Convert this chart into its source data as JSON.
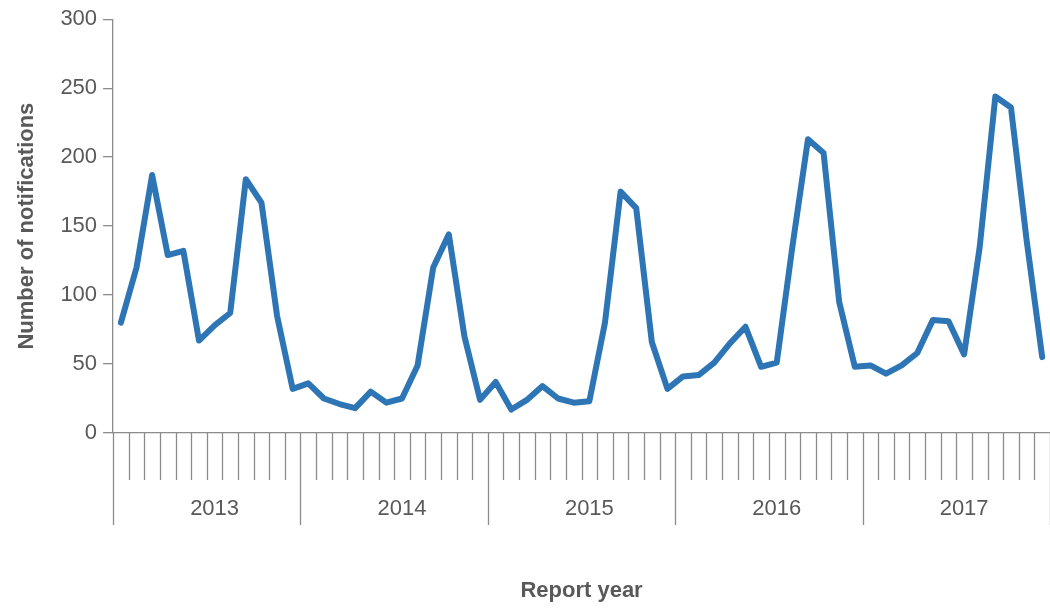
{
  "chart_data": {
    "type": "line",
    "xlabel": "Report year",
    "ylabel": "Number of notifications",
    "categories": [
      null,
      null,
      null,
      null,
      null,
      null,
      "2013",
      null,
      null,
      null,
      null,
      null,
      null,
      null,
      null,
      null,
      null,
      null,
      "2014",
      null,
      null,
      null,
      null,
      null,
      null,
      null,
      null,
      null,
      null,
      null,
      "2015",
      null,
      null,
      null,
      null,
      null,
      null,
      null,
      null,
      null,
      null,
      null,
      "2016",
      null,
      null,
      null,
      null,
      null,
      null,
      null,
      null,
      null,
      null,
      null,
      "2017",
      null,
      null,
      null,
      null,
      null
    ],
    "series": [
      {
        "color": "#2e75b6",
        "values": [
          80,
          120,
          187,
          129,
          132,
          67,
          78,
          87,
          184,
          167,
          85,
          32,
          36,
          25,
          21,
          18,
          30,
          22,
          25,
          49,
          120,
          144,
          70,
          24,
          37,
          17,
          24,
          34,
          25,
          22,
          23,
          80,
          175,
          163,
          66,
          32,
          41,
          42,
          51,
          65,
          77,
          48,
          51,
          135,
          213,
          203,
          95,
          48,
          49,
          43,
          49,
          58,
          82,
          81,
          57,
          135,
          244,
          236,
          140,
          55
        ]
      }
    ],
    "ylim": [
      0,
      300
    ],
    "yticks": [
      0,
      50,
      100,
      150,
      200,
      250,
      300
    ],
    "grid": false,
    "legend": false,
    "marker": "none",
    "line_style": "solid"
  }
}
